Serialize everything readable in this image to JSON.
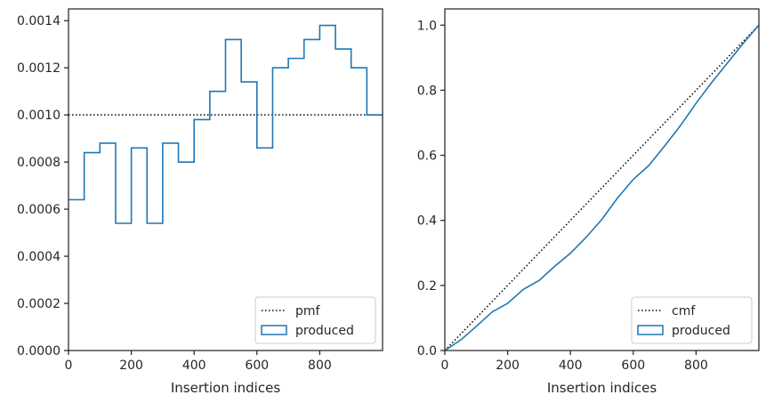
{
  "chart_data": [
    {
      "type": "histogram-step",
      "xlabel": "Insertion indices",
      "ylabel": "",
      "xlim": [
        0,
        1000
      ],
      "ylim": [
        0,
        0.00145
      ],
      "xticks": [
        0,
        200,
        400,
        600,
        800
      ],
      "xtick_labels": [
        "0",
        "200",
        "400",
        "600",
        "800"
      ],
      "yticks": [
        0,
        0.0002,
        0.0004,
        0.0006,
        0.0008,
        0.001,
        0.0012,
        0.0014
      ],
      "ytick_labels": [
        "0.0000",
        "0.0002",
        "0.0004",
        "0.0006",
        "0.0008",
        "0.0010",
        "0.0012",
        "0.0014"
      ],
      "grid": false,
      "legend_position": "lower-right",
      "series": [
        {
          "name": "pmf",
          "style": "dotted",
          "color": "#000000",
          "x": [
            0,
            1000
          ],
          "values": [
            0.001,
            0.001
          ]
        },
        {
          "name": "produced",
          "style": "step",
          "color": "#1f77b4",
          "bin_edges": [
            0,
            50,
            100,
            150,
            200,
            250,
            300,
            350,
            400,
            450,
            500,
            550,
            600,
            650,
            700,
            750,
            800,
            850,
            900,
            950,
            1000
          ],
          "values": [
            0.00064,
            0.00084,
            0.00088,
            0.00054,
            0.00086,
            0.00054,
            0.00088,
            0.0008,
            0.00098,
            0.0011,
            0.00132,
            0.00114,
            0.00086,
            0.0012,
            0.00124,
            0.00132,
            0.00138,
            0.00128,
            0.0012,
            0.001
          ]
        }
      ]
    },
    {
      "type": "line",
      "xlabel": "Insertion indices",
      "ylabel": "",
      "xlim": [
        0,
        1000
      ],
      "ylim": [
        0,
        1.05
      ],
      "xticks": [
        0,
        200,
        400,
        600,
        800
      ],
      "xtick_labels": [
        "0",
        "200",
        "400",
        "600",
        "800"
      ],
      "yticks": [
        0,
        0.2,
        0.4,
        0.6,
        0.8,
        1.0
      ],
      "ytick_labels": [
        "0.0",
        "0.2",
        "0.4",
        "0.6",
        "0.8",
        "1.0"
      ],
      "grid": false,
      "legend_position": "lower-right",
      "series": [
        {
          "name": "cmf",
          "style": "dotted",
          "color": "#000000",
          "x": [
            0,
            1000
          ],
          "values": [
            0,
            1
          ]
        },
        {
          "name": "produced",
          "style": "line",
          "color": "#1f77b4",
          "x": [
            0,
            50,
            100,
            150,
            200,
            250,
            300,
            350,
            400,
            450,
            500,
            550,
            600,
            650,
            700,
            750,
            800,
            850,
            900,
            950,
            1000
          ],
          "values": [
            0,
            0.032,
            0.074,
            0.118,
            0.145,
            0.188,
            0.215,
            0.259,
            0.299,
            0.348,
            0.403,
            0.469,
            0.526,
            0.569,
            0.629,
            0.691,
            0.76,
            0.824,
            0.884,
            0.944,
            1.0
          ]
        }
      ]
    }
  ]
}
